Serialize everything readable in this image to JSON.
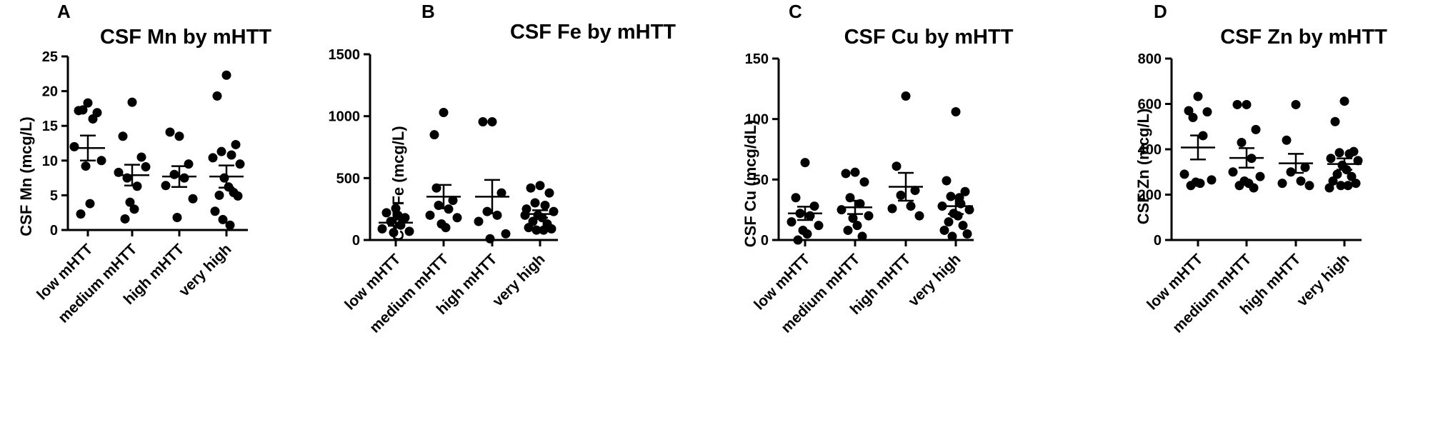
{
  "chart_data": [
    {
      "type": "scatter",
      "panel_letter": "A",
      "title": "CSF Mn by mHTT",
      "xlabel": "",
      "ylabel": "CSF Mn (mcg/L)",
      "ylim": [
        0,
        25
      ],
      "yticks": [
        0,
        5,
        10,
        15,
        20,
        25
      ],
      "categories": [
        "low mHTT",
        "medium mHTT",
        "high mHTT",
        "very high"
      ],
      "points": [
        [
          18.3,
          17.2,
          16.9,
          17.3,
          16.0,
          12.0,
          10.0,
          9.2,
          3.8,
          2.3
        ],
        [
          18.4,
          13.5,
          10.5,
          7.5,
          6.3,
          8.3,
          9.1,
          4.0,
          3.0,
          1.6
        ],
        [
          13.5,
          14.1,
          9.5,
          8.0,
          7.5,
          6.4,
          4.5,
          1.8
        ],
        [
          22.3,
          19.3,
          12.3,
          11.3,
          10.8,
          10.4,
          9.5,
          7.5,
          6.2,
          5.0,
          5.4,
          2.7,
          4.9,
          1.5,
          0.7
        ]
      ],
      "means": [
        11.8,
        7.9,
        7.7,
        7.7
      ],
      "sem": [
        1.8,
        1.5,
        1.5,
        1.6
      ]
    },
    {
      "type": "scatter",
      "panel_letter": "B",
      "title": "CSF Fe by mHTT",
      "xlabel": "",
      "ylabel": "CSF Fe (mcg/L)",
      "ylim": [
        0,
        1500
      ],
      "yticks": [
        0,
        500,
        1000,
        1500
      ],
      "categories": [
        "low mHTT",
        "medium mHTT",
        "high mHTT",
        "very high"
      ],
      "points": [
        [
          255,
          220,
          180,
          150,
          120,
          90,
          70,
          60,
          200
        ],
        [
          1030,
          850,
          320,
          280,
          250,
          200,
          180,
          130,
          100,
          420
        ],
        [
          955,
          955,
          380,
          230,
          200,
          150,
          50,
          10
        ],
        [
          440,
          420,
          380,
          300,
          280,
          250,
          230,
          200,
          180,
          150,
          130,
          100,
          90,
          80,
          80,
          200
        ]
      ],
      "means": [
        140,
        350,
        350,
        210
      ],
      "sem": [
        25,
        95,
        135,
        30
      ]
    },
    {
      "type": "scatter",
      "panel_letter": "C",
      "title": "CSF Cu by mHTT",
      "xlabel": "",
      "ylabel": "CSF Cu  (mcg/dL)",
      "ylim": [
        0,
        150
      ],
      "yticks": [
        0,
        50,
        100,
        150
      ],
      "categories": [
        "low mHTT",
        "medium mHTT",
        "high mHTT",
        "very high"
      ],
      "points": [
        [
          64,
          35,
          28,
          22,
          20,
          15,
          12,
          8,
          5,
          0
        ],
        [
          56,
          55,
          48,
          35,
          30,
          25,
          20,
          18,
          12,
          8,
          3
        ],
        [
          119,
          61,
          41,
          37,
          28,
          26,
          20
        ],
        [
          106,
          49,
          40,
          36,
          30,
          28,
          25,
          22,
          20,
          15,
          12,
          8,
          5,
          3,
          35
        ]
      ],
      "means": [
        22,
        27,
        44,
        28
      ],
      "sem": [
        5.5,
        5.5,
        11.5,
        6.5
      ]
    },
    {
      "type": "scatter",
      "panel_letter": "D",
      "title": "CSF Zn by mHTT",
      "xlabel": "",
      "ylabel": "CSF Zn (mcg/L)",
      "ylim": [
        0,
        800
      ],
      "yticks": [
        0,
        200,
        400,
        600,
        800
      ],
      "categories": [
        "low mHTT",
        "medium mHTT",
        "high mHTT",
        "very high"
      ],
      "points": [
        [
          633,
          570,
          565,
          540,
          460,
          290,
          265,
          255,
          250,
          240
        ],
        [
          597,
          597,
          487,
          430,
          360,
          300,
          280,
          260,
          250,
          240,
          230
        ],
        [
          597,
          440,
          320,
          300,
          260,
          250,
          240
        ],
        [
          612,
          522,
          390,
          385,
          380,
          360,
          350,
          330,
          310,
          290,
          280,
          260,
          250,
          240,
          240,
          230
        ]
      ],
      "means": [
        408,
        362,
        338,
        335
      ],
      "sem": [
        53,
        43,
        42,
        25
      ]
    }
  ]
}
